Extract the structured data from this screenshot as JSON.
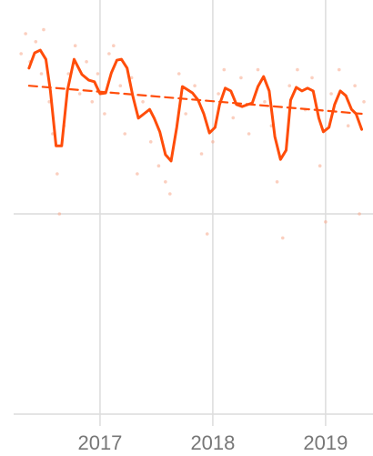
{
  "chart_data": {
    "type": "line",
    "xlim": [
      2016.234,
      2019.38
    ],
    "xticks": [
      2017,
      2018,
      2019
    ],
    "ylim": [
      0,
      100
    ],
    "yticks": [
      0,
      50
    ],
    "grid": true,
    "series": [
      {
        "type": "scatter",
        "color": "#f7a78a",
        "x": [
          2016.3,
          2016.34,
          2016.38,
          2016.43,
          2016.48,
          2016.5,
          2016.55,
          2016.58,
          2016.62,
          2016.64,
          2016.68,
          2016.72,
          2016.78,
          2016.82,
          2016.88,
          2016.93,
          2016.98,
          2017.04,
          2017.08,
          2017.12,
          2017.18,
          2017.22,
          2017.28,
          2017.33,
          2017.38,
          2017.45,
          2017.52,
          2017.58,
          2017.62,
          2017.7,
          2017.76,
          2017.84,
          2017.9,
          2017.95,
          2018.0,
          2018.05,
          2018.1,
          2018.18,
          2018.25,
          2018.32,
          2018.4,
          2018.46,
          2018.52,
          2018.57,
          2018.62,
          2018.68,
          2018.75,
          2018.82,
          2018.88,
          2018.95,
          2019.0,
          2019.05,
          2019.12,
          2019.2,
          2019.26,
          2019.3,
          2019.34
        ],
        "values": [
          90,
          95,
          88,
          93,
          85,
          96,
          78,
          70,
          60,
          50,
          72,
          85,
          92,
          80,
          88,
          78,
          85,
          75,
          90,
          92,
          82,
          70,
          84,
          60,
          78,
          68,
          62,
          58,
          55,
          85,
          75,
          82,
          65,
          45,
          68,
          80,
          86,
          74,
          84,
          70,
          86,
          78,
          72,
          58,
          44,
          82,
          86,
          76,
          84,
          62,
          48,
          80,
          86,
          72,
          82,
          50,
          78
        ]
      },
      {
        "type": "line",
        "color": "#ff4d0a",
        "dashed": false,
        "x": [
          2016.37,
          2016.42,
          2016.47,
          2016.52,
          2016.56,
          2016.61,
          2016.66,
          2016.71,
          2016.77,
          2016.84,
          2016.9,
          2016.95,
          2017.0,
          2017.05,
          2017.1,
          2017.15,
          2017.19,
          2017.24,
          2017.29,
          2017.34,
          2017.39,
          2017.44,
          2017.48,
          2017.53,
          2017.58,
          2017.63,
          2017.68,
          2017.73,
          2017.77,
          2017.82,
          2017.87,
          2017.92,
          2017.97,
          2018.02,
          2018.06,
          2018.11,
          2018.16,
          2018.21,
          2018.26,
          2018.31,
          2018.35,
          2018.4,
          2018.45,
          2018.5,
          2018.55,
          2018.6,
          2018.65,
          2018.69,
          2018.74,
          2018.79,
          2018.84,
          2018.89,
          2018.94,
          2018.98,
          2019.03,
          2019.08,
          2019.13,
          2019.18,
          2019.23,
          2019.27,
          2019.32
        ],
        "values": [
          86.4,
          90.2,
          90.9,
          88.6,
          80.7,
          67.0,
          67.0,
          80.7,
          88.6,
          84.8,
          83.4,
          83.0,
          80.0,
          80.2,
          85.2,
          88.4,
          88.6,
          86.4,
          79.5,
          73.9,
          75.0,
          76.1,
          73.9,
          70.5,
          64.8,
          63.2,
          71.6,
          81.8,
          81.1,
          80.2,
          78.4,
          75.0,
          70.2,
          71.6,
          77.3,
          81.4,
          80.7,
          77.3,
          76.8,
          77.3,
          77.7,
          81.8,
          84.3,
          80.7,
          69.3,
          63.6,
          65.9,
          78.4,
          81.6,
          80.7,
          81.4,
          80.7,
          73.9,
          70.5,
          71.6,
          77.3,
          80.7,
          79.5,
          76.1,
          75.0,
          71.1
        ]
      },
      {
        "type": "line",
        "color": "#ff4d0a",
        "dashed": true,
        "x": [
          2016.37,
          2019.32
        ],
        "values": [
          82.0,
          75.0
        ]
      }
    ]
  }
}
